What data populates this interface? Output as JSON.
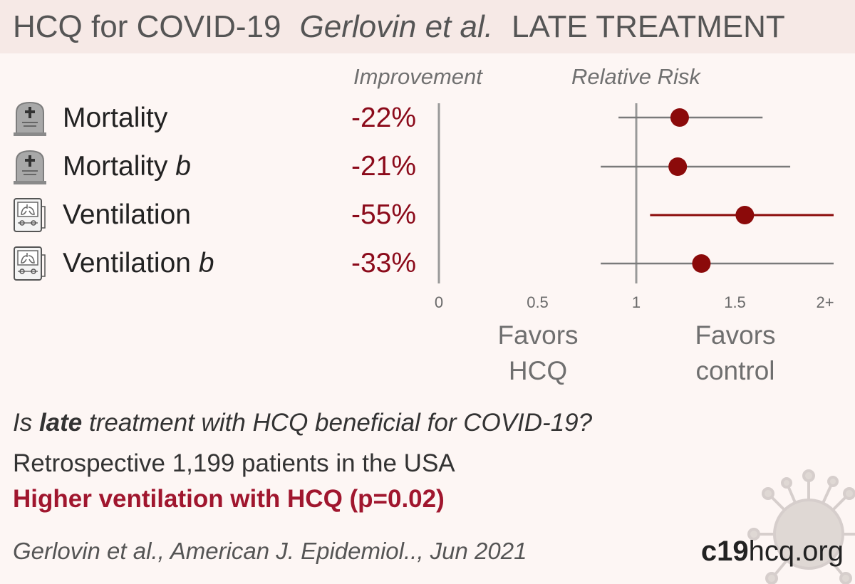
{
  "header": {
    "title": "HCQ for COVID-19",
    "authors": "Gerlovin et al.",
    "stage": "LATE TREATMENT"
  },
  "columns": {
    "improvement": "Improvement",
    "relative_risk": "Relative Risk"
  },
  "outcomes": [
    {
      "label": "Mortality",
      "suffix": "",
      "improvement": "-22%",
      "icon": "tombstone-icon"
    },
    {
      "label": "Mortality",
      "suffix": "b",
      "improvement": "-21%",
      "icon": "tombstone-icon"
    },
    {
      "label": "Ventilation",
      "suffix": "",
      "improvement": "-55%",
      "icon": "ventilator-icon"
    },
    {
      "label": "Ventilation",
      "suffix": "b",
      "improvement": "-33%",
      "icon": "ventilator-icon"
    }
  ],
  "chart_data": {
    "type": "forest",
    "x_axis": {
      "ticks": [
        "0",
        "0.5",
        "1",
        "1.5",
        "2+"
      ],
      "range": [
        0,
        2
      ]
    },
    "series": [
      {
        "rr": 1.22,
        "ci_low": 0.91,
        "ci_high": 1.64,
        "highlight": false
      },
      {
        "rr": 1.21,
        "ci_low": 0.82,
        "ci_high": 1.78,
        "highlight": false
      },
      {
        "rr": 1.55,
        "ci_low": 1.07,
        "ci_high": 2.25,
        "highlight": true
      },
      {
        "rr": 1.33,
        "ci_low": 0.82,
        "ci_high": 2.25,
        "highlight": false
      }
    ],
    "favors_left": [
      "Favors",
      "HCQ"
    ],
    "favors_right": [
      "Favors",
      "control"
    ],
    "colors": {
      "point": "#8b0a0a",
      "ci": "#7a7a7a",
      "ci_highlight": "#8b0a0a",
      "axis": "#999999"
    }
  },
  "summary": {
    "question_pre": "Is ",
    "question_bold": "late",
    "question_post": " treatment with HCQ beneficial for COVID-19?",
    "study": "Retrospective 1,199 patients in the USA",
    "result": "Higher ventilation with HCQ (p=0.02)"
  },
  "citation": "Gerlovin et al., American J. Epidemiol.., Jun 2021",
  "site": {
    "bold": "c19",
    "rest": "hcq.org"
  }
}
